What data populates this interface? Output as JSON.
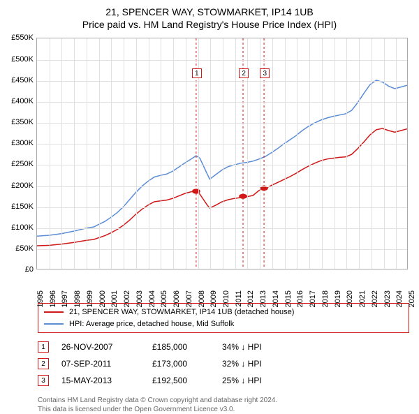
{
  "title": {
    "line1": "21, SPENCER WAY, STOWMARKET, IP14 1UB",
    "line2": "Price paid vs. HM Land Registry's House Price Index (HPI)",
    "fontsize": 14,
    "color": "#000000"
  },
  "chart": {
    "type": "line",
    "background_color": "#ffffff",
    "grid_color": "#e0e0e0",
    "axis_color": "#aaaaaa",
    "x": {
      "min": 1995,
      "max": 2025,
      "step": 1,
      "labels": [
        "1995",
        "1996",
        "1997",
        "1998",
        "1999",
        "2000",
        "2001",
        "2002",
        "2003",
        "2004",
        "2005",
        "2006",
        "2007",
        "2008",
        "2009",
        "2010",
        "2011",
        "2012",
        "2013",
        "2014",
        "2015",
        "2016",
        "2017",
        "2018",
        "2019",
        "2020",
        "2021",
        "2022",
        "2023",
        "2024",
        "2025"
      ],
      "label_fontsize": 11,
      "label_rotation_deg": -90
    },
    "y": {
      "min": 0,
      "max": 550000,
      "step": 50000,
      "labels": [
        "£0",
        "£50K",
        "£100K",
        "£150K",
        "£200K",
        "£250K",
        "£300K",
        "£350K",
        "£400K",
        "£450K",
        "£500K",
        "£550K"
      ],
      "label_fontsize": 11
    },
    "series": [
      {
        "name": "property",
        "label": "21, SPENCER WAY, STOWMARKET, IP14 1UB (detached house)",
        "color": "#d01818",
        "line_width": 1.5,
        "points": [
          [
            1995,
            55000
          ],
          [
            1996,
            56000
          ],
          [
            1997,
            59000
          ],
          [
            1998,
            63000
          ],
          [
            1999,
            68000
          ],
          [
            1999.6,
            70000
          ],
          [
            2000,
            74000
          ],
          [
            2000.5,
            79000
          ],
          [
            2001,
            86000
          ],
          [
            2001.5,
            94000
          ],
          [
            2002,
            104000
          ],
          [
            2002.5,
            116000
          ],
          [
            2003,
            130000
          ],
          [
            2003.5,
            142000
          ],
          [
            2004,
            152000
          ],
          [
            2004.5,
            160000
          ],
          [
            2005,
            162000
          ],
          [
            2005.5,
            164000
          ],
          [
            2006,
            168000
          ],
          [
            2006.5,
            174000
          ],
          [
            2007,
            180000
          ],
          [
            2007.5,
            184000
          ],
          [
            2007.9,
            185000
          ],
          [
            2008.2,
            178000
          ],
          [
            2008.5,
            165000
          ],
          [
            2008.8,
            152000
          ],
          [
            2009,
            145000
          ],
          [
            2009.5,
            152000
          ],
          [
            2010,
            160000
          ],
          [
            2010.5,
            165000
          ],
          [
            2011,
            168000
          ],
          [
            2011.5,
            170000
          ],
          [
            2011.7,
            173000
          ],
          [
            2012,
            172000
          ],
          [
            2012.5,
            175000
          ],
          [
            2013,
            187000
          ],
          [
            2013.4,
            192500
          ],
          [
            2013.8,
            196000
          ],
          [
            2014,
            199000
          ],
          [
            2014.5,
            206000
          ],
          [
            2015,
            213000
          ],
          [
            2015.5,
            220000
          ],
          [
            2016,
            228000
          ],
          [
            2016.5,
            237000
          ],
          [
            2017,
            245000
          ],
          [
            2017.5,
            252000
          ],
          [
            2018,
            258000
          ],
          [
            2018.5,
            262000
          ],
          [
            2019,
            264000
          ],
          [
            2019.5,
            266000
          ],
          [
            2020,
            267000
          ],
          [
            2020.5,
            273000
          ],
          [
            2021,
            287000
          ],
          [
            2021.5,
            303000
          ],
          [
            2022,
            320000
          ],
          [
            2022.5,
            332000
          ],
          [
            2023,
            335000
          ],
          [
            2023.5,
            330000
          ],
          [
            2024,
            326000
          ],
          [
            2024.5,
            330000
          ],
          [
            2025,
            334000
          ]
        ]
      },
      {
        "name": "hpi",
        "label": "HPI: Average price, detached house, Mid Suffolk",
        "color": "#5b8dd6",
        "line_width": 1.5,
        "points": [
          [
            1995,
            78000
          ],
          [
            1996,
            80000
          ],
          [
            1997,
            84000
          ],
          [
            1998,
            90000
          ],
          [
            1999,
            97000
          ],
          [
            1999.6,
            100000
          ],
          [
            2000,
            106000
          ],
          [
            2000.5,
            113000
          ],
          [
            2001,
            123000
          ],
          [
            2001.5,
            134000
          ],
          [
            2002,
            148000
          ],
          [
            2002.5,
            165000
          ],
          [
            2003,
            182000
          ],
          [
            2003.5,
            197000
          ],
          [
            2004,
            209000
          ],
          [
            2004.5,
            219000
          ],
          [
            2005,
            223000
          ],
          [
            2005.5,
            226000
          ],
          [
            2006,
            233000
          ],
          [
            2006.5,
            243000
          ],
          [
            2007,
            253000
          ],
          [
            2007.5,
            262000
          ],
          [
            2007.9,
            270000
          ],
          [
            2008.2,
            264000
          ],
          [
            2008.5,
            245000
          ],
          [
            2008.8,
            226000
          ],
          [
            2009,
            214000
          ],
          [
            2009.5,
            225000
          ],
          [
            2010,
            236000
          ],
          [
            2010.5,
            244000
          ],
          [
            2011,
            248000
          ],
          [
            2011.5,
            252000
          ],
          [
            2012,
            254000
          ],
          [
            2012.5,
            257000
          ],
          [
            2013,
            262000
          ],
          [
            2013.5,
            268000
          ],
          [
            2014,
            277000
          ],
          [
            2014.5,
            287000
          ],
          [
            2015,
            298000
          ],
          [
            2015.5,
            308000
          ],
          [
            2016,
            318000
          ],
          [
            2016.5,
            330000
          ],
          [
            2017,
            340000
          ],
          [
            2017.5,
            348000
          ],
          [
            2018,
            355000
          ],
          [
            2018.5,
            360000
          ],
          [
            2019,
            364000
          ],
          [
            2019.5,
            367000
          ],
          [
            2020,
            370000
          ],
          [
            2020.5,
            378000
          ],
          [
            2021,
            397000
          ],
          [
            2021.5,
            419000
          ],
          [
            2022,
            440000
          ],
          [
            2022.5,
            450000
          ],
          [
            2023,
            446000
          ],
          [
            2023.5,
            436000
          ],
          [
            2024,
            430000
          ],
          [
            2024.5,
            434000
          ],
          [
            2025,
            438000
          ]
        ]
      }
    ],
    "markers": [
      {
        "n": "1",
        "x": 2007.9,
        "y": 185000,
        "line_color": "#d01818",
        "box_y": 468000
      },
      {
        "n": "2",
        "x": 2011.7,
        "y": 173000,
        "line_color": "#d01818",
        "box_y": 468000
      },
      {
        "n": "3",
        "x": 2013.4,
        "y": 192500,
        "line_color": "#d01818",
        "box_y": 468000
      }
    ],
    "marker_dot_radius": 3.5
  },
  "legend": {
    "border_color": "#d01818",
    "fontsize": 11,
    "items": [
      {
        "color": "#d01818",
        "label": "21, SPENCER WAY, STOWMARKET, IP14 1UB (detached house)"
      },
      {
        "color": "#5b8dd6",
        "label": "HPI: Average price, detached house, Mid Suffolk"
      }
    ]
  },
  "sales": {
    "fontsize": 12,
    "box_border_color": "#d01818",
    "rows": [
      {
        "n": "1",
        "date": "26-NOV-2007",
        "price": "£185,000",
        "delta": "34% ↓ HPI"
      },
      {
        "n": "2",
        "date": "07-SEP-2011",
        "price": "£173,000",
        "delta": "32% ↓ HPI"
      },
      {
        "n": "3",
        "date": "15-MAY-2013",
        "price": "£192,500",
        "delta": "25% ↓ HPI"
      }
    ]
  },
  "footnote": {
    "line1": "Contains HM Land Registry data © Crown copyright and database right 2024.",
    "line2": "This data is licensed under the Open Government Licence v3.0.",
    "color": "#666666",
    "fontsize": 10
  }
}
